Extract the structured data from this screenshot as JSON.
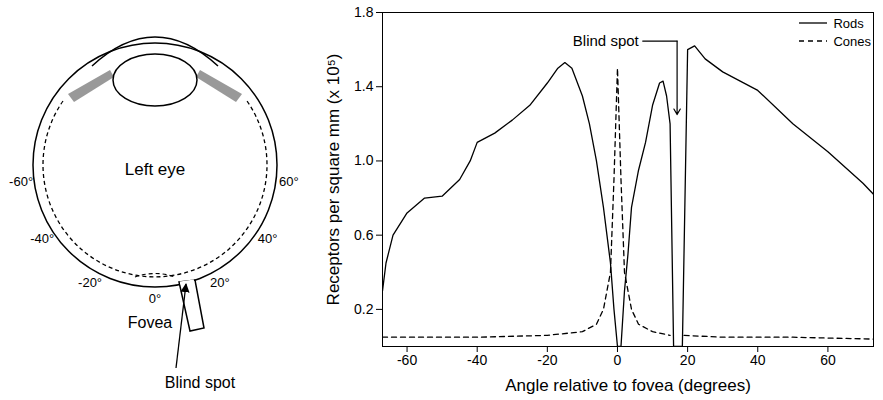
{
  "chart_data": {
    "type": "line",
    "xlabel": "Angle relative to fovea (degrees)",
    "ylabel": "Receptors per square mm (x 10⁵)",
    "xlim": [
      -67,
      73
    ],
    "ylim": [
      0,
      1.8
    ],
    "xticks": [
      -60,
      -40,
      -20,
      0,
      20,
      40,
      60
    ],
    "yticks": [
      0.2,
      0.6,
      {
        "value": 1,
        "label": "1.0"
      },
      1.4,
      1.8
    ],
    "grid": false,
    "legend": "top-right",
    "series": [
      {
        "name": "Rods",
        "color": "#000000",
        "line_style": "solid",
        "x": [
          -67,
          -66,
          -64,
          -60,
          -55,
          -50,
          -45,
          -42,
          -40,
          -35,
          -30,
          -25,
          -20,
          -17,
          -15,
          -13,
          -10,
          -8,
          -6,
          -4,
          -2,
          -1,
          0,
          1,
          2,
          3,
          4,
          6,
          8,
          10,
          12,
          13,
          14,
          15,
          16,
          18.5,
          20,
          22,
          25,
          30,
          40,
          50,
          60,
          70,
          73
        ],
        "values": [
          0.3,
          0.45,
          0.6,
          0.72,
          0.8,
          0.81,
          0.9,
          1.0,
          1.1,
          1.15,
          1.22,
          1.3,
          1.42,
          1.5,
          1.53,
          1.5,
          1.35,
          1.2,
          1.0,
          0.75,
          0.45,
          0.2,
          0,
          0,
          0.3,
          0.5,
          0.75,
          0.95,
          1.1,
          1.3,
          1.42,
          1.43,
          1.35,
          1.2,
          0,
          0,
          1.6,
          1.62,
          1.55,
          1.48,
          1.38,
          1.2,
          1.05,
          0.88,
          0.82
        ]
      },
      {
        "name": "Cones",
        "color": "#000000",
        "line_style": "dashed",
        "x": [
          -67,
          -60,
          -40,
          -20,
          -10,
          -6,
          -4,
          -2,
          -1,
          0,
          1,
          2,
          4,
          6,
          10,
          15,
          16,
          18.5,
          19,
          30,
          50,
          73
        ],
        "values": [
          0.05,
          0.05,
          0.05,
          0.06,
          0.08,
          0.12,
          0.2,
          0.4,
          0.9,
          1.5,
          0.9,
          0.4,
          0.2,
          0.12,
          0.08,
          0.06,
          null,
          null,
          0.06,
          0.05,
          0.05,
          0.04
        ]
      }
    ],
    "annotations": [
      {
        "text": "Blind spot",
        "x": 17,
        "y": 1.25
      }
    ]
  },
  "diagram": {
    "title": "Left eye",
    "fovea_label": "Fovea",
    "blind_spot_label": "Blind spot",
    "angles": [
      {
        "value": -60,
        "label": "-60°"
      },
      {
        "value": -40,
        "label": "-40°"
      },
      {
        "value": -20,
        "label": "-20°"
      },
      {
        "value": 0,
        "label": "0°"
      },
      {
        "value": 20,
        "label": "20°"
      },
      {
        "value": 40,
        "label": "40°"
      },
      {
        "value": 60,
        "label": "60°"
      }
    ]
  }
}
